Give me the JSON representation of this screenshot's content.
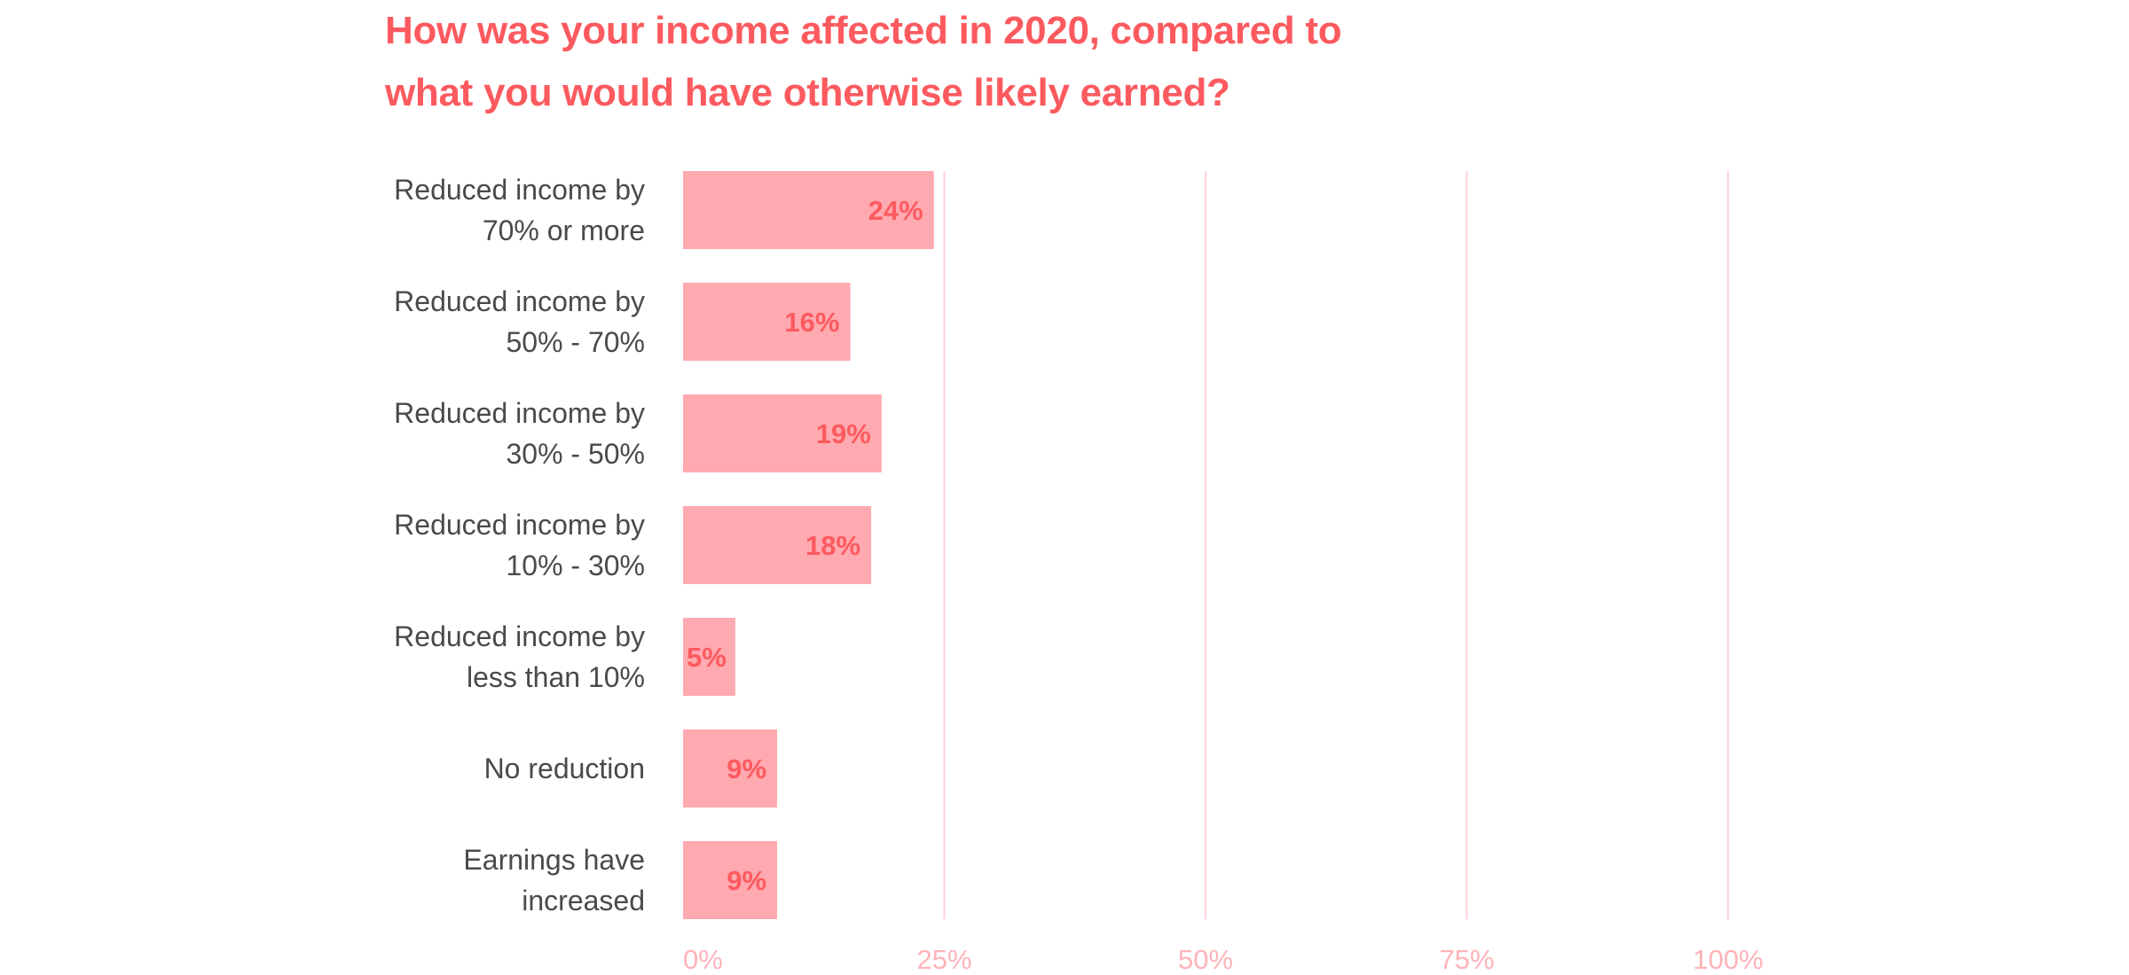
{
  "title_lines": [
    "How was your income affected in 2020, compared to",
    "what you would have otherwise likely earned?"
  ],
  "colors": {
    "title": "#fc5a5f",
    "bar": "#ffa9b0",
    "value_label": "#fc5a5f",
    "category_label": "#4a4a4a",
    "tick_label": "#ffb3b8",
    "gridline": "#ffd2d6"
  },
  "chart_data": {
    "type": "bar",
    "orientation": "horizontal",
    "categories": [
      [
        "Reduced income by",
        "70% or more"
      ],
      [
        "Reduced income by",
        "50% - 70%"
      ],
      [
        "Reduced income by",
        "30% - 50%"
      ],
      [
        "Reduced income by",
        "10% - 30%"
      ],
      [
        "Reduced income by",
        "less than 10%"
      ],
      [
        "No reduction"
      ],
      [
        "Earnings have",
        "increased"
      ]
    ],
    "values": [
      24,
      16,
      19,
      18,
      5,
      9,
      9
    ],
    "value_labels": [
      "24%",
      "16%",
      "19%",
      "18%",
      "5%",
      "9%",
      "9%"
    ],
    "xticks": [
      0,
      25,
      50,
      75,
      100
    ],
    "xtick_labels": [
      "0%",
      "25%",
      "50%",
      "75%",
      "100%"
    ],
    "xlim": [
      0,
      100
    ],
    "grid": "vertical",
    "legend": "none",
    "title": "How was your income affected in 2020, compared to what you would have otherwise likely earned?"
  }
}
